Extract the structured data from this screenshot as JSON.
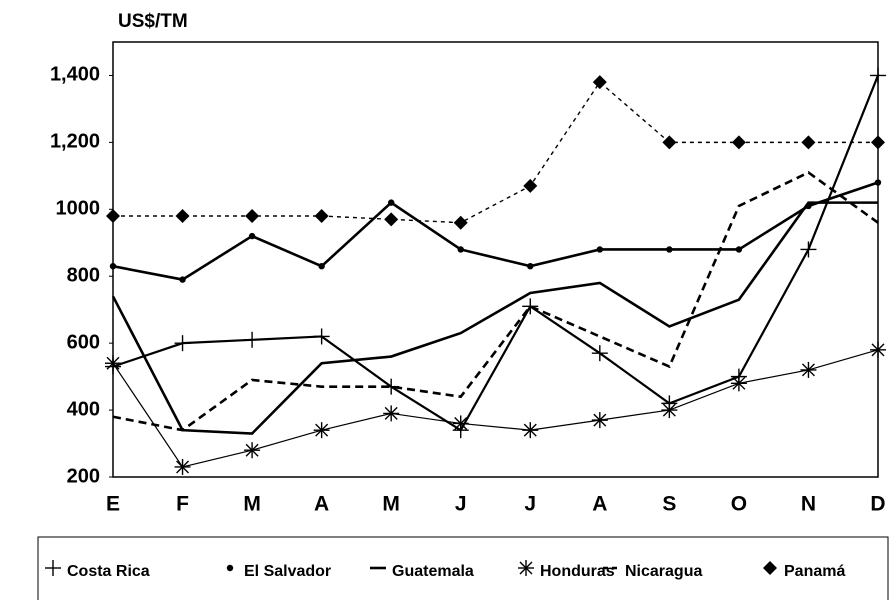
{
  "chart_data": {
    "type": "line",
    "y_label": "US$/TM",
    "categories": [
      "E",
      "F",
      "M",
      "A",
      "M",
      "J",
      "J",
      "A",
      "S",
      "O",
      "N",
      "D"
    ],
    "ylim": [
      200,
      1500
    ],
    "yticks": [
      200,
      400,
      600,
      800,
      1000,
      {
        "value": 1200,
        "label": "1,200"
      },
      {
        "value": 1400,
        "label": "1,400"
      }
    ],
    "grid": false,
    "legend": "bottom",
    "series": [
      {
        "name": "Costa Rica",
        "color": "#000000",
        "marker": "plus",
        "dash": "solid",
        "width": 2.2,
        "values": [
          530,
          600,
          610,
          620,
          470,
          340,
          710,
          570,
          420,
          500,
          880,
          1400
        ]
      },
      {
        "name": "El Salvador",
        "color": "#000000",
        "marker": "dot",
        "dash": "solid",
        "width": 2.6,
        "values": [
          830,
          790,
          920,
          830,
          1020,
          880,
          830,
          880,
          880,
          880,
          1010,
          1080
        ]
      },
      {
        "name": "Guatemala",
        "color": "#000000",
        "marker": "none",
        "dash": "solid",
        "width": 2.6,
        "values": [
          740,
          340,
          330,
          540,
          560,
          630,
          750,
          780,
          650,
          730,
          1020,
          1020
        ]
      },
      {
        "name": "Honduras",
        "color": "#000000",
        "marker": "asterisk",
        "dash": "solid",
        "width": 1.2,
        "values": [
          540,
          230,
          280,
          340,
          390,
          360,
          340,
          370,
          400,
          480,
          520,
          580
        ]
      },
      {
        "name": "Nicaragua",
        "color": "#000000",
        "marker": "none",
        "dash": "dashed",
        "width": 2.6,
        "values": [
          380,
          340,
          490,
          470,
          470,
          440,
          710,
          620,
          530,
          1010,
          1110,
          960
        ]
      },
      {
        "name": "Panamá",
        "color": "#000000",
        "marker": "diamond",
        "dash": "dotted",
        "width": 1.4,
        "values": [
          980,
          980,
          980,
          980,
          970,
          960,
          1070,
          1380,
          1200,
          1200,
          1200,
          1200
        ]
      }
    ]
  }
}
